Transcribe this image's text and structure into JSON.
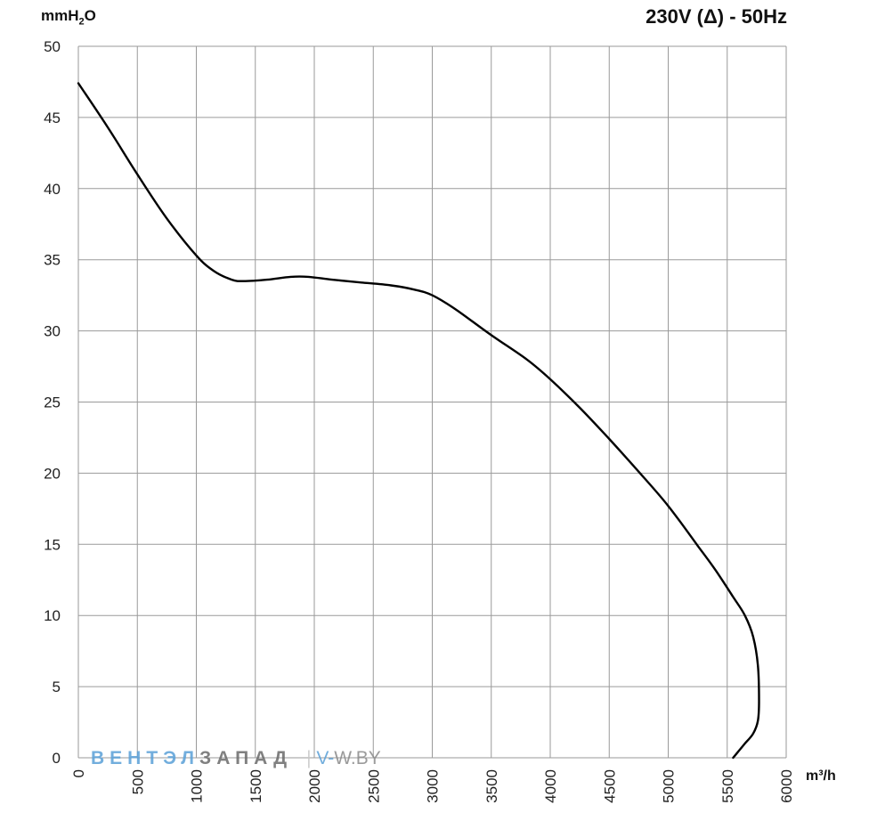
{
  "chart_data": {
    "type": "line",
    "title": "230V (Δ) - 50Hz",
    "ylabel_main": "mmH",
    "ylabel_sub": "2",
    "ylabel_end": "O",
    "xlabel": "m³/h",
    "xlim": [
      0,
      6000
    ],
    "ylim": [
      0,
      50
    ],
    "x_ticks": [
      "0",
      "500",
      "1000",
      "1500",
      "2000",
      "2500",
      "3000",
      "3500",
      "4000",
      "4500",
      "5000",
      "5500",
      "6000"
    ],
    "y_ticks": [
      "0",
      "5",
      "10",
      "15",
      "20",
      "25",
      "30",
      "35",
      "40",
      "45",
      "50"
    ],
    "grid": true,
    "series": [
      {
        "color": "#000000",
        "x": [
          0,
          250,
          500,
          750,
          1000,
          1150,
          1300,
          1400,
          1600,
          1800,
          1950,
          2150,
          2400,
          2650,
          2850,
          3000,
          3200,
          3500,
          3800,
          4000,
          4250,
          4500,
          4750,
          5000,
          5250,
          5400,
          5550,
          5650,
          5720,
          5760,
          5770,
          5760,
          5720,
          5650,
          5600,
          5550
        ],
        "y": [
          47.4,
          44.3,
          41.0,
          37.9,
          35.3,
          34.2,
          33.6,
          33.5,
          33.6,
          33.8,
          33.8,
          33.6,
          33.4,
          33.2,
          32.9,
          32.5,
          31.5,
          29.7,
          28.0,
          26.6,
          24.6,
          22.4,
          20.1,
          17.7,
          14.9,
          13.2,
          11.3,
          10.0,
          8.5,
          6.5,
          4.0,
          2.6,
          1.7,
          1.0,
          0.5,
          0.0
        ]
      }
    ]
  },
  "watermark": {
    "part1": "ВЕНТЭЛ",
    "part2": "ЗАПАД",
    "part3": "V-",
    "part4": "W.BY"
  }
}
